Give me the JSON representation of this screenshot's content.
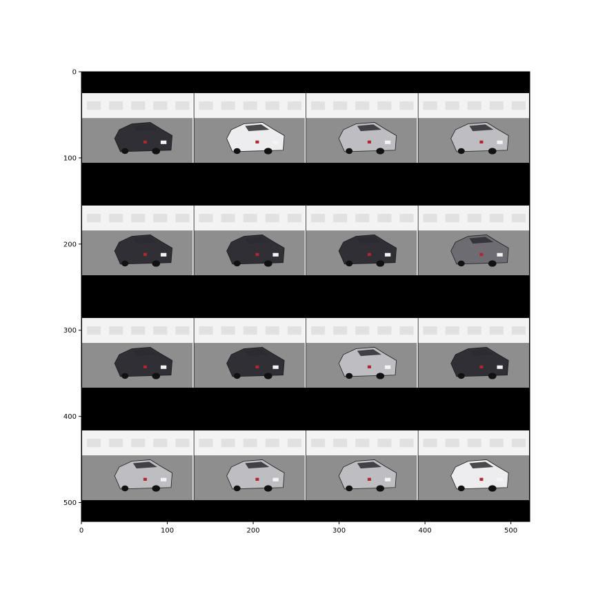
{
  "figure": {
    "description_free": true,
    "image_grid": {
      "rows": 4,
      "cols": 4,
      "background_color": "#000000",
      "tile_separator_color": "#ffffff"
    },
    "tiles": [
      {
        "tone": "dark"
      },
      {
        "tone": "white"
      },
      {
        "tone": "light"
      },
      {
        "tone": "light"
      },
      {
        "tone": "dark"
      },
      {
        "tone": "dark"
      },
      {
        "tone": "dark"
      },
      {
        "tone": "mid"
      },
      {
        "tone": "dark"
      },
      {
        "tone": "dark"
      },
      {
        "tone": "light"
      },
      {
        "tone": "dark"
      },
      {
        "tone": "light"
      },
      {
        "tone": "light"
      },
      {
        "tone": "light"
      },
      {
        "tone": "white"
      }
    ],
    "colors": {
      "sky": "#f3f3f3",
      "ground": "#8e8e8e",
      "car_dark": "#2f2f35",
      "car_mid": "#6c6c72",
      "car_light": "#bdbdc2",
      "car_white": "#ededf0",
      "tail_light": "#b9232e"
    }
  },
  "axes": {
    "x_ticks": [
      "0",
      "100",
      "200",
      "300",
      "400",
      "500"
    ],
    "y_ticks": [
      "0",
      "100",
      "200",
      "300",
      "400",
      "500"
    ],
    "x_range": [
      0,
      522
    ],
    "y_range": [
      0,
      522
    ]
  }
}
